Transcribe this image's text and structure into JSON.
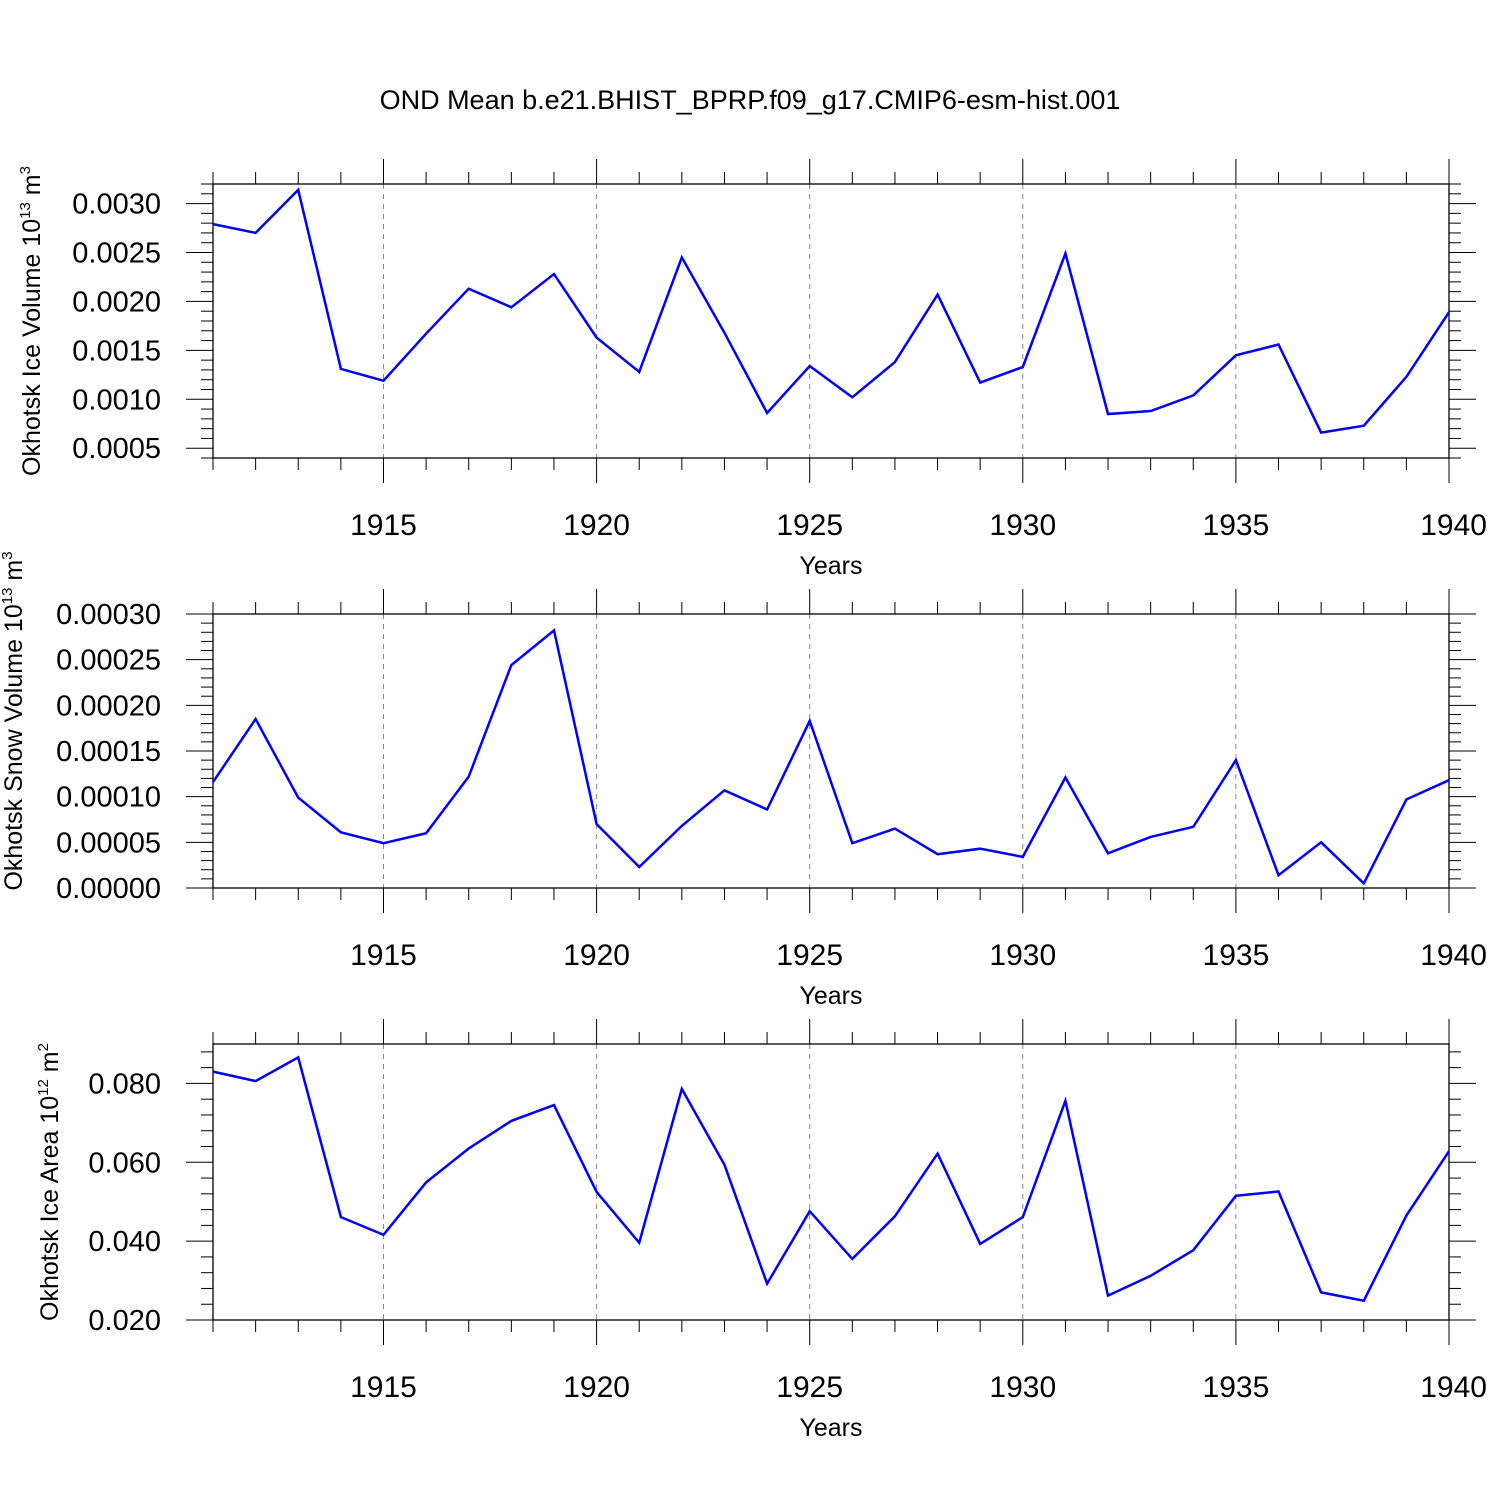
{
  "title": "OND Mean b.e21.BHIST_BPRP.f09_g17.CMIP6-esm-hist.001",
  "colors": {
    "line": "#0000ff",
    "axis": "#000000",
    "grid": "#888888"
  },
  "chart_data": [
    {
      "type": "line",
      "ylabel_main": "Okhotsk Ice Volume 10",
      "ylabel_exp": "13",
      "ylabel_unit": " m",
      "ylabel_unit_exp": "3",
      "xlabel": "Years",
      "xlim": [
        1911,
        1940
      ],
      "xticks": [
        "1915",
        "1920",
        "1925",
        "1930",
        "1935",
        "1940"
      ],
      "ylim": [
        0.0004,
        0.0032
      ],
      "yticks": [
        "0.0005",
        "0.0010",
        "0.0015",
        "0.0020",
        "0.0025",
        "0.0030"
      ],
      "grid": "vertical dashed at major x ticks",
      "x": [
        1911,
        1912,
        1913,
        1914,
        1915,
        1916,
        1917,
        1918,
        1919,
        1920,
        1921,
        1922,
        1923,
        1924,
        1925,
        1926,
        1927,
        1928,
        1929,
        1930,
        1931,
        1932,
        1933,
        1934,
        1935,
        1936,
        1937,
        1938,
        1939,
        1940
      ],
      "series": [
        {
          "values": [
            0.00279,
            0.0027,
            0.00314,
            0.00131,
            0.00119,
            0.00167,
            0.00213,
            0.00194,
            0.00228,
            0.00163,
            0.00128,
            0.00245,
            0.00168,
            0.00086,
            0.00134,
            0.00102,
            0.00138,
            0.00207,
            0.00117,
            0.00133,
            0.00249,
            0.00085,
            0.00088,
            0.00104,
            0.00145,
            0.00156,
            0.00066,
            0.00073,
            0.00123,
            0.00189
          ]
        }
      ]
    },
    {
      "type": "line",
      "ylabel_main": "Okhotsk Snow Volume 10",
      "ylabel_exp": "13",
      "ylabel_unit": " m",
      "ylabel_unit_exp": "3",
      "xlabel": "Years",
      "xlim": [
        1911,
        1940
      ],
      "xticks": [
        "1915",
        "1920",
        "1925",
        "1930",
        "1935",
        "1940"
      ],
      "ylim": [
        0.0,
        0.0003
      ],
      "yticks": [
        "0.00000",
        "0.00005",
        "0.00010",
        "0.00015",
        "0.00020",
        "0.00025",
        "0.00030"
      ],
      "grid": "vertical dashed at major x ticks",
      "x": [
        1911,
        1912,
        1913,
        1914,
        1915,
        1916,
        1917,
        1918,
        1919,
        1920,
        1921,
        1922,
        1923,
        1924,
        1925,
        1926,
        1927,
        1928,
        1929,
        1930,
        1931,
        1932,
        1933,
        1934,
        1935,
        1936,
        1937,
        1938,
        1939,
        1940
      ],
      "series": [
        {
          "values": [
            0.000116,
            0.000185,
            9.9e-05,
            6.1e-05,
            4.9e-05,
            6e-05,
            0.000122,
            0.000244,
            0.000282,
            7e-05,
            2.3e-05,
            6.8e-05,
            0.000107,
            8.6e-05,
            0.000183,
            4.9e-05,
            6.5e-05,
            3.7e-05,
            4.3e-05,
            3.4e-05,
            0.000121,
            3.8e-05,
            5.6e-05,
            6.7e-05,
            0.00014,
            1.4e-05,
            5e-05,
            5e-06,
            9.7e-05,
            0.000118
          ]
        }
      ]
    },
    {
      "type": "line",
      "ylabel_main": "Okhotsk Ice Area 10",
      "ylabel_exp": "12",
      "ylabel_unit": " m",
      "ylabel_unit_exp": "2",
      "xlabel": "Years",
      "xlim": [
        1911,
        1940
      ],
      "xticks": [
        "1915",
        "1920",
        "1925",
        "1930",
        "1935",
        "1940"
      ],
      "ylim": [
        0.02,
        0.09
      ],
      "yticks": [
        "0.020",
        "0.040",
        "0.060",
        "0.080"
      ],
      "grid": "vertical dashed at major x ticks",
      "x": [
        1911,
        1912,
        1913,
        1914,
        1915,
        1916,
        1917,
        1918,
        1919,
        1920,
        1921,
        1922,
        1923,
        1924,
        1925,
        1926,
        1927,
        1928,
        1929,
        1930,
        1931,
        1932,
        1933,
        1934,
        1935,
        1936,
        1937,
        1938,
        1939,
        1940
      ],
      "series": [
        {
          "values": [
            0.083,
            0.0806,
            0.0866,
            0.0461,
            0.0416,
            0.0549,
            0.0635,
            0.0705,
            0.0745,
            0.0525,
            0.0396,
            0.0786,
            0.0594,
            0.0292,
            0.0476,
            0.0355,
            0.0463,
            0.0622,
            0.0393,
            0.0461,
            0.0756,
            0.0262,
            0.0312,
            0.0377,
            0.0515,
            0.0526,
            0.027,
            0.0249,
            0.0465,
            0.0628
          ]
        }
      ]
    }
  ]
}
